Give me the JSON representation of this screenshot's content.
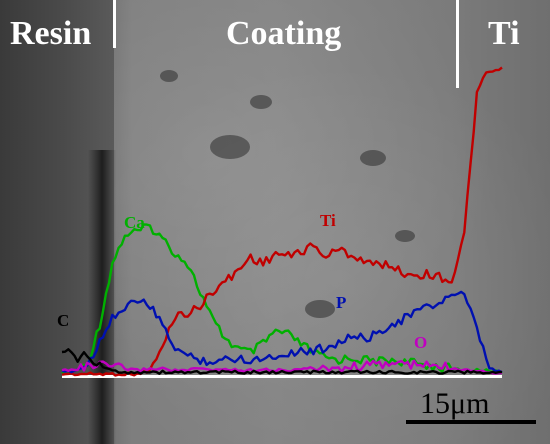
{
  "regions": {
    "resin": "Resin",
    "coating": "Coating",
    "ti": "Ti"
  },
  "profiles": [
    {
      "label": "Ca",
      "color": "#00b000",
      "values": [
        0.01,
        0.02,
        0.05,
        0.28,
        0.62,
        0.78,
        0.8,
        0.83,
        0.76,
        0.68,
        0.62,
        0.46,
        0.3,
        0.2,
        0.14,
        0.12,
        0.17,
        0.24,
        0.22,
        0.17,
        0.12,
        0.09,
        0.08,
        0.09,
        0.08,
        0.07,
        0.08,
        0.07,
        0.06,
        0.05,
        0.04,
        0.03,
        0.02,
        0.02,
        0.02,
        0.01
      ]
    },
    {
      "label": "Ti",
      "color": "#c00000",
      "values": [
        0.0,
        0.0,
        0.0,
        0.0,
        0.0,
        0.0,
        0.0,
        0.02,
        0.15,
        0.33,
        0.34,
        0.38,
        0.47,
        0.52,
        0.58,
        0.66,
        0.62,
        0.68,
        0.66,
        0.69,
        0.72,
        0.66,
        0.7,
        0.67,
        0.64,
        0.61,
        0.62,
        0.57,
        0.56,
        0.56,
        0.55,
        0.52,
        0.78,
        1.58,
        1.7,
        1.7
      ]
    },
    {
      "label": "P",
      "color": "#0010b0",
      "values": [
        0.01,
        0.02,
        0.05,
        0.18,
        0.33,
        0.36,
        0.42,
        0.38,
        0.27,
        0.15,
        0.1,
        0.08,
        0.07,
        0.08,
        0.09,
        0.08,
        0.09,
        0.1,
        0.12,
        0.13,
        0.13,
        0.15,
        0.18,
        0.21,
        0.2,
        0.22,
        0.28,
        0.3,
        0.35,
        0.37,
        0.4,
        0.45,
        0.44,
        0.25,
        0.03,
        0.01
      ]
    },
    {
      "label": "O",
      "color": "#c000c0",
      "values": [
        0.02,
        0.03,
        0.04,
        0.05,
        0.04,
        0.03,
        0.02,
        0.03,
        0.03,
        0.02,
        0.02,
        0.03,
        0.02,
        0.03,
        0.02,
        0.02,
        0.03,
        0.02,
        0.02,
        0.03,
        0.03,
        0.04,
        0.03,
        0.04,
        0.05,
        0.05,
        0.06,
        0.06,
        0.05,
        0.05,
        0.04,
        0.04,
        0.03,
        0.02,
        0.01,
        0.01
      ]
    },
    {
      "label": "C",
      "color": "#000000",
      "values": [
        0.14,
        0.09,
        0.1,
        0.04,
        0.02,
        0.01,
        0.01,
        0.01,
        0.01,
        0.01,
        0.01,
        0.01,
        0.01,
        0.01,
        0.01,
        0.01,
        0.01,
        0.01,
        0.01,
        0.01,
        0.01,
        0.01,
        0.01,
        0.01,
        0.01,
        0.01,
        0.01,
        0.01,
        0.01,
        0.01,
        0.01,
        0.01,
        0.01,
        0.01,
        0.01,
        0.01
      ]
    }
  ],
  "scale_bar": {
    "label": "15μm"
  }
}
